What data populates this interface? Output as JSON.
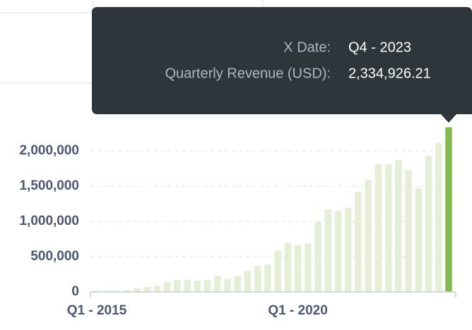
{
  "chart_data": {
    "type": "bar",
    "categories": [
      "Q1 - 2015",
      null,
      null,
      null,
      null,
      null,
      null,
      null,
      null,
      null,
      null,
      null,
      null,
      null,
      null,
      null,
      null,
      null,
      null,
      null,
      "Q1 - 2020",
      null,
      null,
      null,
      null,
      null,
      null,
      null,
      null,
      null,
      null,
      null,
      null,
      null,
      null,
      null
    ],
    "values": [
      20000,
      20000,
      20000,
      25000,
      50000,
      70000,
      90000,
      140000,
      170000,
      170000,
      160000,
      170000,
      230000,
      180000,
      220000,
      300000,
      370000,
      390000,
      590000,
      690000,
      660000,
      690000,
      990000,
      1170000,
      1150000,
      1190000,
      1420000,
      1590000,
      1810000,
      1810000,
      1870000,
      1730000,
      1470000,
      1930000,
      2110000,
      2334926.21
    ],
    "color": "#e4efd6",
    "highlight_color": "#84bb4c",
    "ylim": [
      0,
      2400000
    ],
    "yticks": [
      0,
      {
        "value": 500000,
        "label": "500,000"
      },
      {
        "value": 1000000,
        "label": "1,000,000"
      },
      {
        "value": 1500000,
        "label": "1,500,000"
      },
      {
        "value": 2000000,
        "label": "2,000,000"
      }
    ],
    "grid": true,
    "tooltip": {
      "x_label": "X Date:",
      "x_value": "Q4 - 2023",
      "y_label": "Quarterly Revenue (USD):",
      "y_value": "2,334,926.21"
    }
  }
}
